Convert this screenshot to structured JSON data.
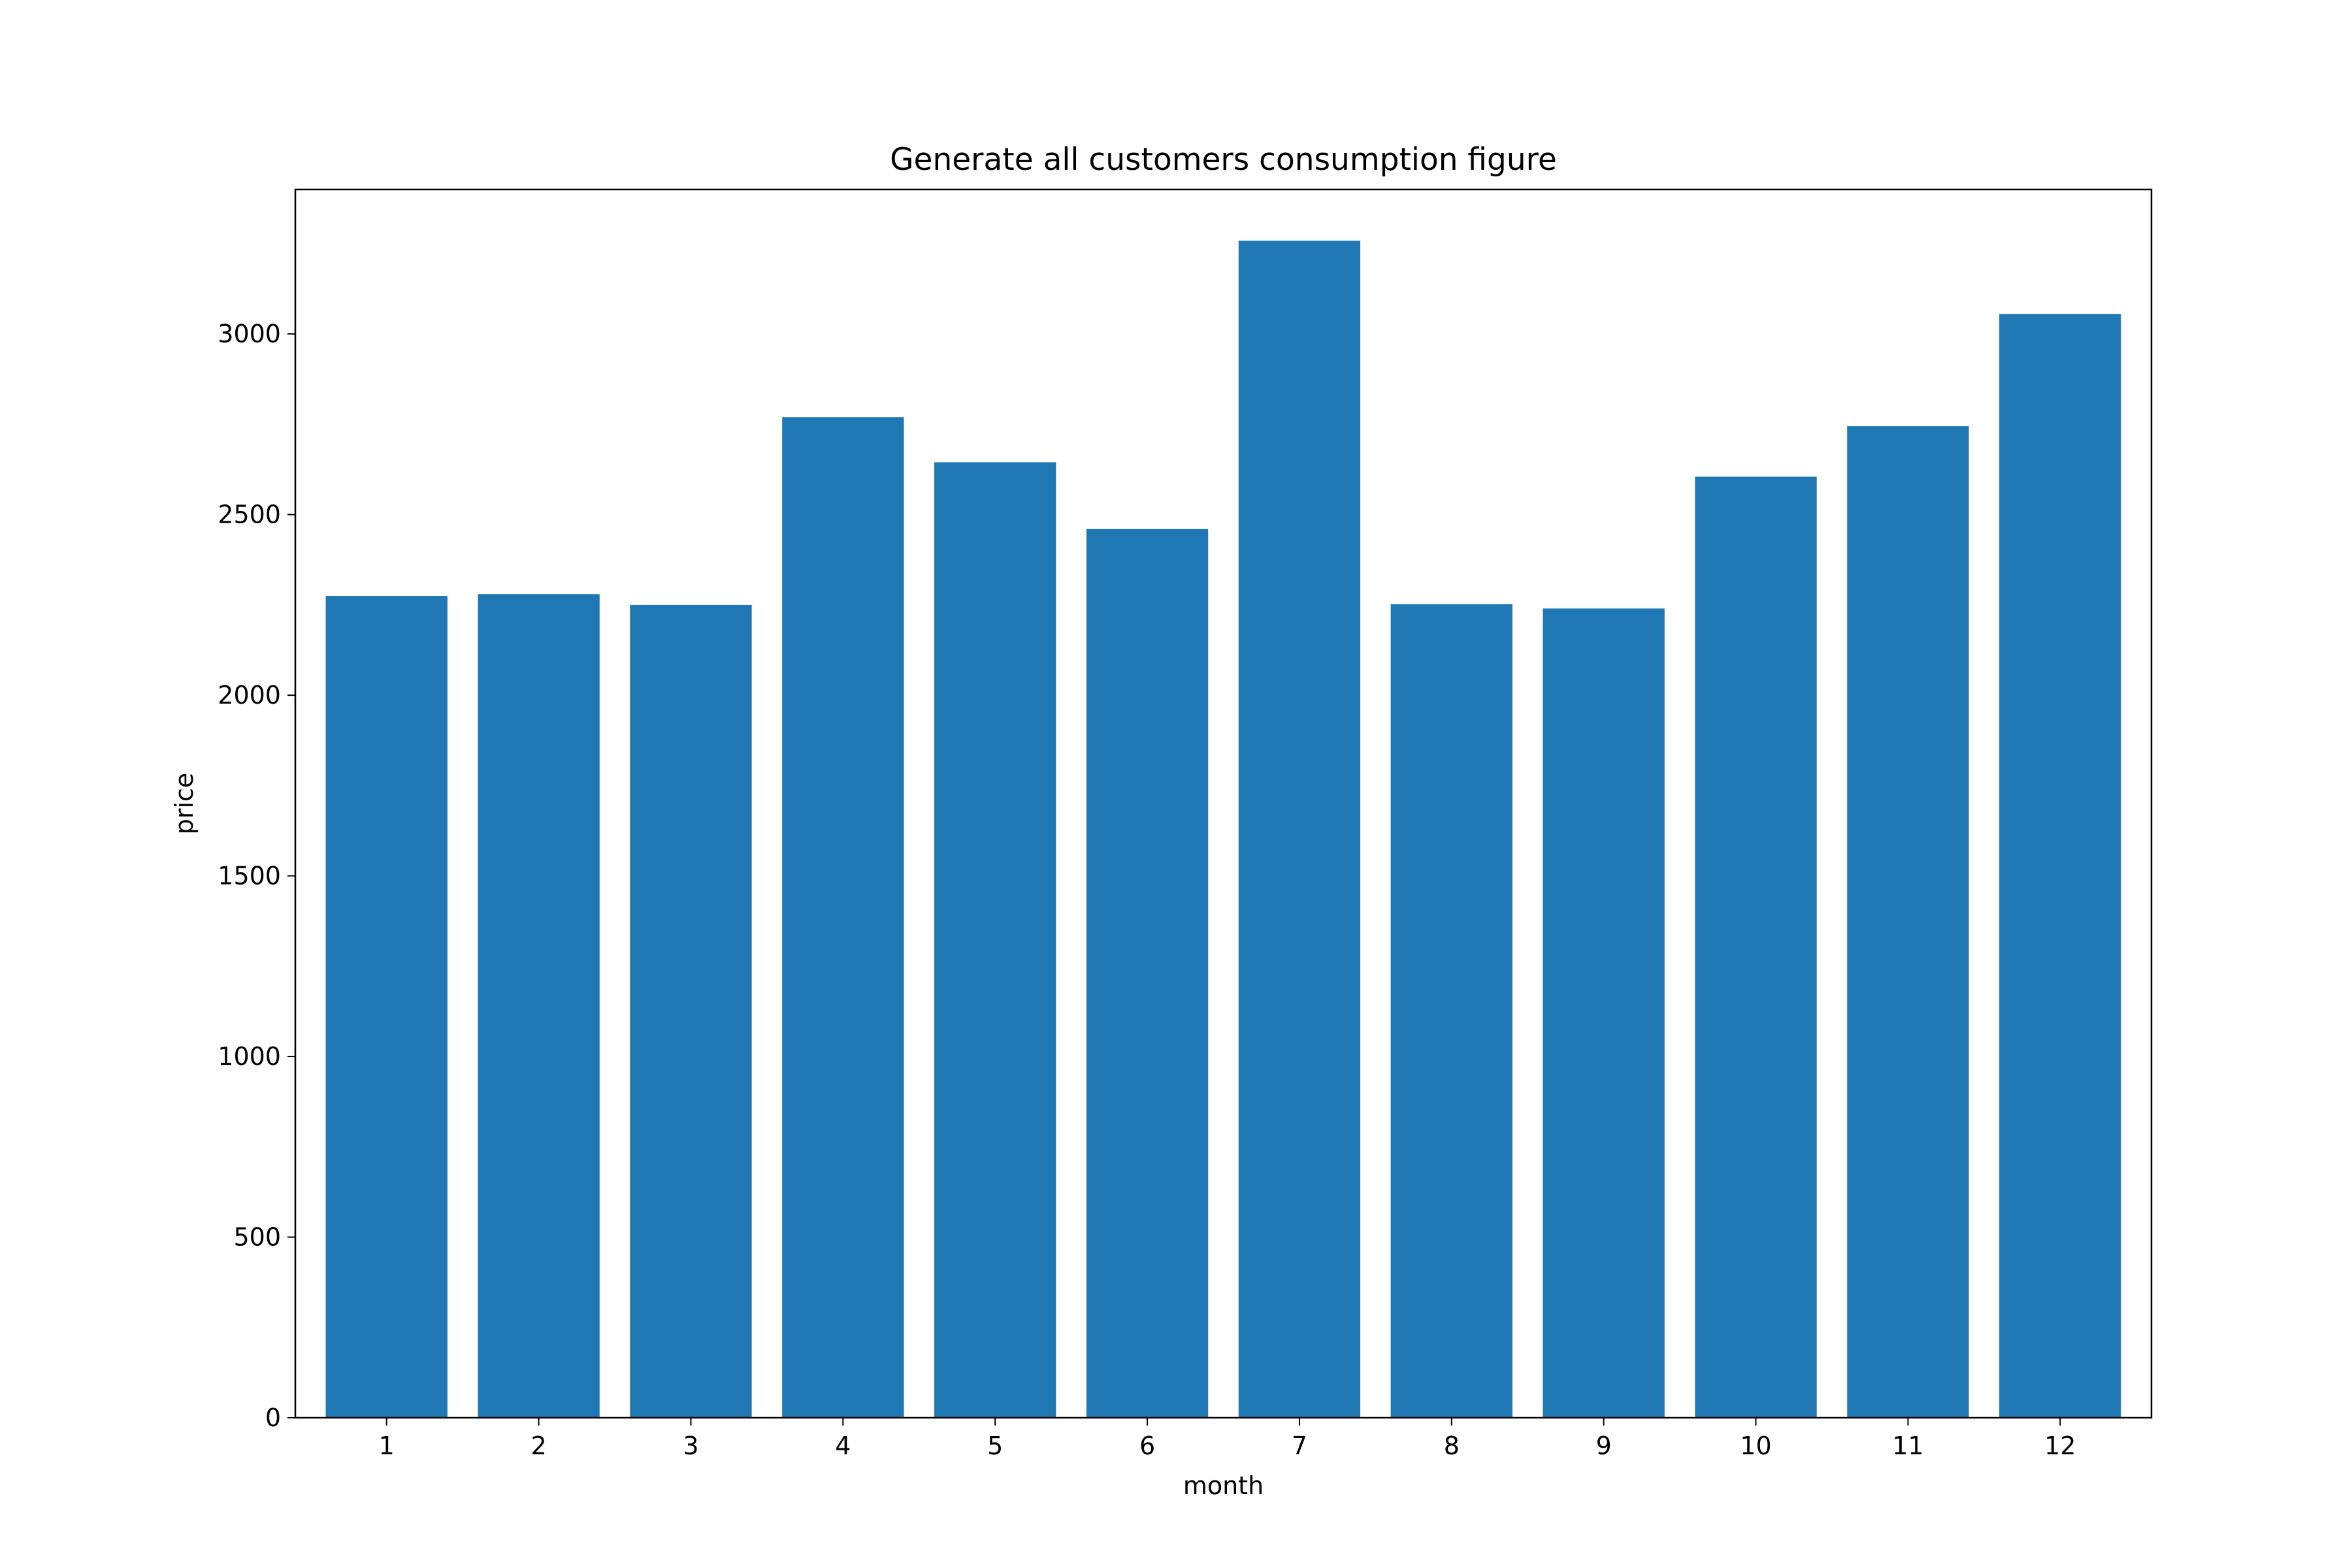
{
  "chart_data": {
    "type": "bar",
    "title": "Generate all customers consumption figure",
    "xlabel": "month",
    "ylabel": "price",
    "categories": [
      "1",
      "2",
      "3",
      "4",
      "5",
      "6",
      "7",
      "8",
      "9",
      "10",
      "11",
      "12"
    ],
    "values": [
      2275,
      2280,
      2250,
      2770,
      2645,
      2460,
      3258,
      2252,
      2240,
      2605,
      2745,
      3055
    ],
    "ylim": [
      0,
      3400
    ],
    "yticks": [
      0,
      500,
      1000,
      1500,
      2000,
      2500,
      3000
    ],
    "grid": false,
    "legend": "none",
    "bar_color": "#1f77b4"
  }
}
